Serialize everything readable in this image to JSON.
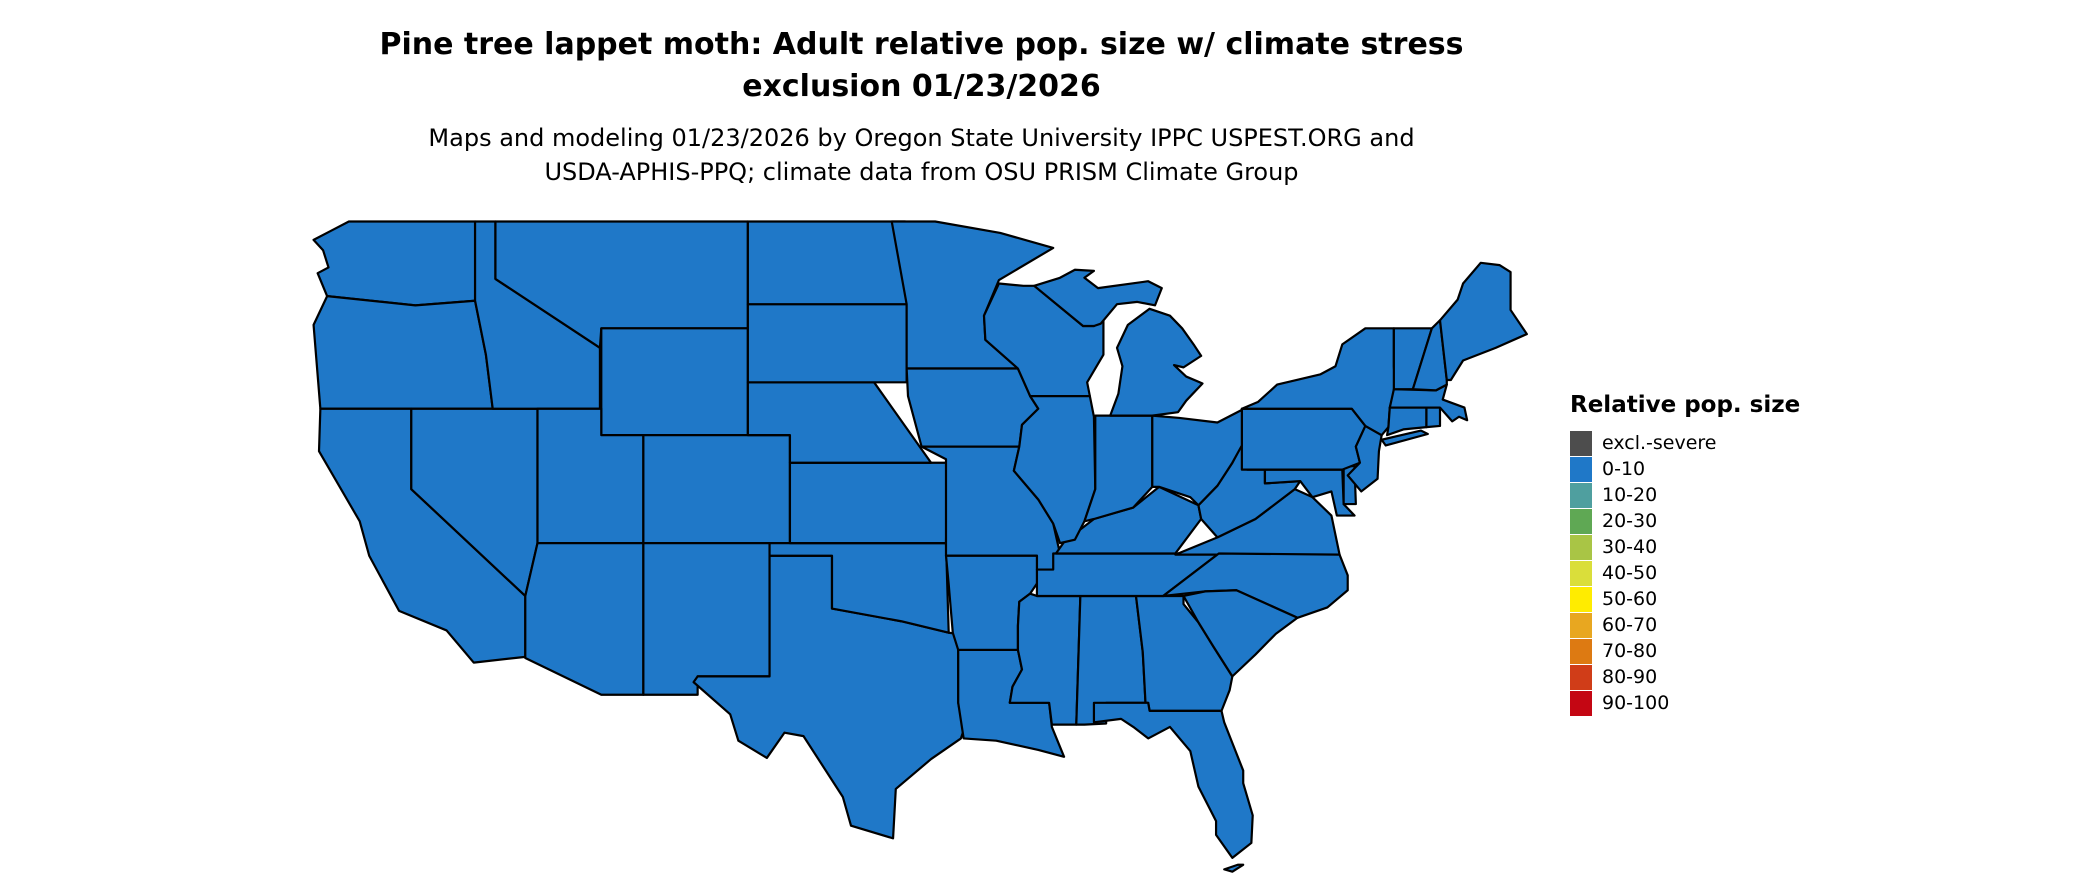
{
  "title": {
    "line1": "Pine tree lappet moth: Adult relative pop. size w/ climate stress",
    "line2": "exclusion 01/23/2026"
  },
  "subtitle": {
    "line1": "Maps and modeling 01/23/2026 by Oregon State University IPPC USPEST.ORG and",
    "line2": "USDA-APHIS-PPQ; climate data from OSU PRISM Climate Group"
  },
  "legend": {
    "title": "Relative pop. size",
    "items": [
      {
        "label": "excl.-severe",
        "color": "#4d4d4d"
      },
      {
        "label": "0-10",
        "color": "#1f78c8"
      },
      {
        "label": "10-20",
        "color": "#4f9f9f"
      },
      {
        "label": "20-30",
        "color": "#5fa854"
      },
      {
        "label": "30-40",
        "color": "#a9c545"
      },
      {
        "label": "40-50",
        "color": "#dade3a"
      },
      {
        "label": "50-60",
        "color": "#ffec00"
      },
      {
        "label": "60-70",
        "color": "#e8a720"
      },
      {
        "label": "70-80",
        "color": "#dd7a12"
      },
      {
        "label": "80-90",
        "color": "#d03d18"
      },
      {
        "label": "90-100",
        "color": "#c40613"
      }
    ]
  },
  "map": {
    "region": "contiguous United States",
    "fill_color": "#1f78c8",
    "border_color": "#000000"
  },
  "chart_data": {
    "type": "choropleth",
    "title": "Pine tree lappet moth: Adult relative pop. size w/ climate stress exclusion 01/23/2026",
    "date_shown": "01/23/2026",
    "extent": "contiguous United States",
    "measure": "Relative pop. size",
    "bins": [
      "excl.-severe",
      "0-10",
      "10-20",
      "20-30",
      "30-40",
      "40-50",
      "50-60",
      "60-70",
      "70-80",
      "80-90",
      "90-100"
    ],
    "value_bin_for_entire_mapped_area": "0-10",
    "legend_position": "right"
  }
}
